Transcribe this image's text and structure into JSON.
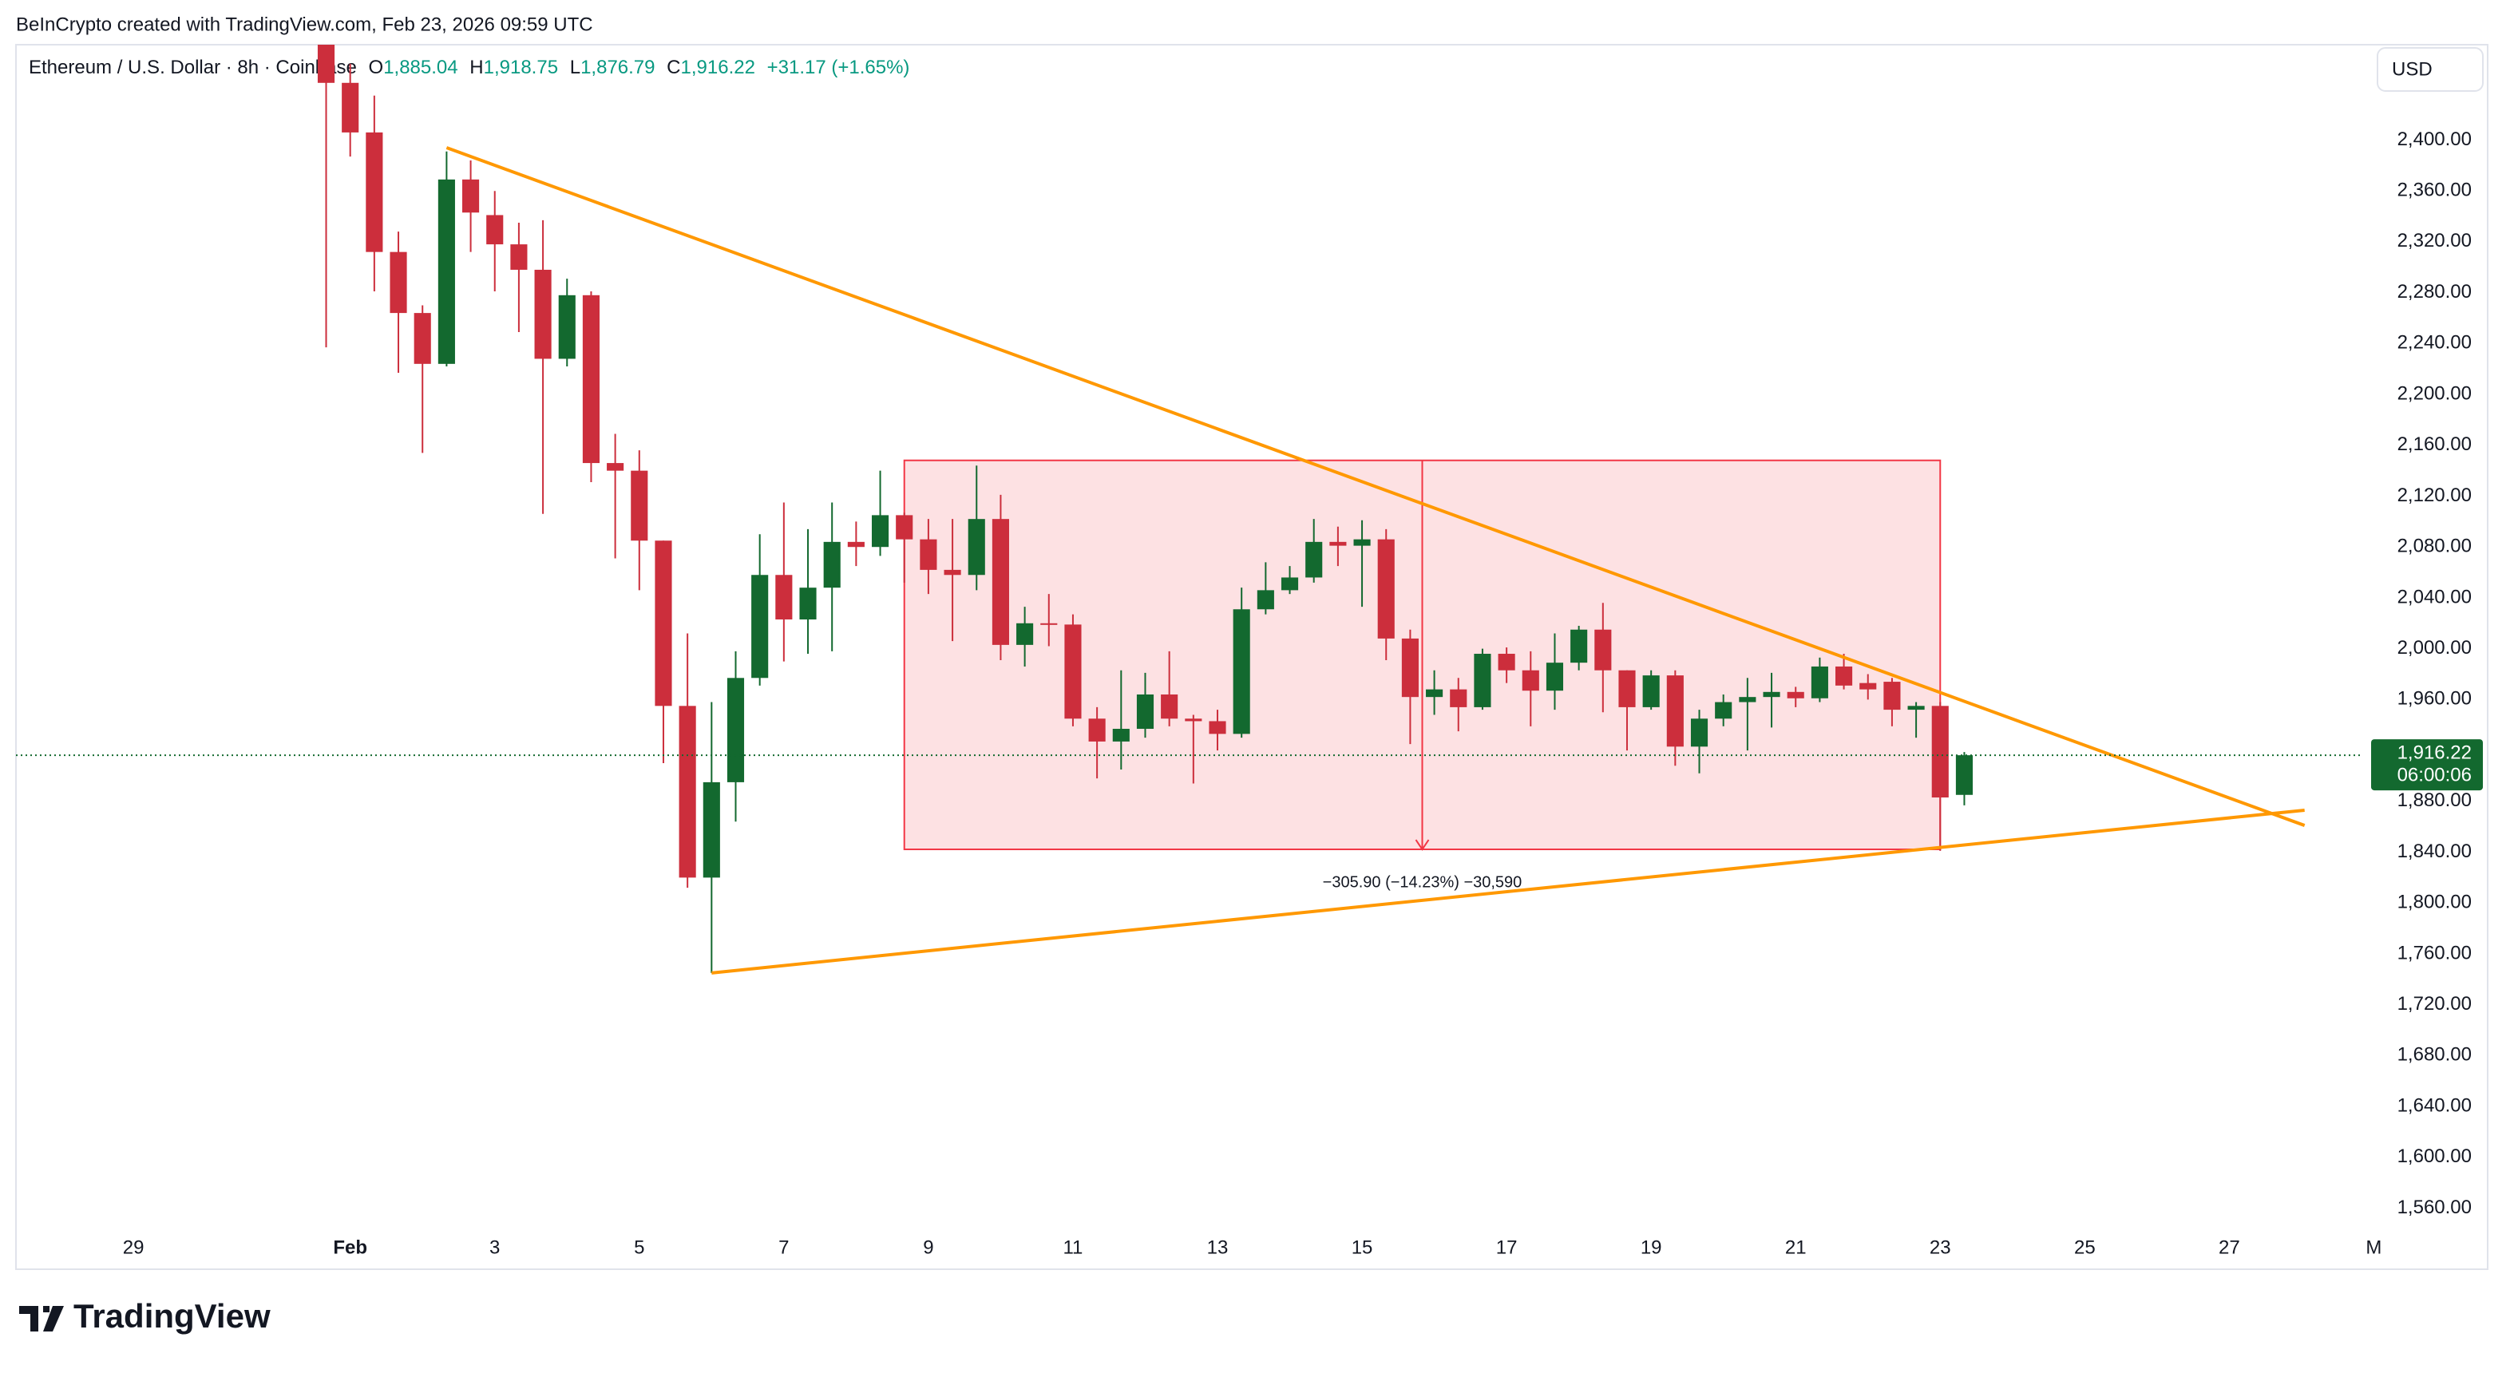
{
  "header": {
    "attribution": "BeInCrypto created with TradingView.com, Feb 23, 2026 09:59 UTC"
  },
  "legend": {
    "symbol": "Ethereum / U.S. Dollar · 8h · Coinbase",
    "open_label": "O",
    "open": "1,885.04",
    "high_label": "H",
    "high": "1,918.75",
    "low_label": "L",
    "low": "1,876.79",
    "close_label": "C",
    "close": "1,916.22",
    "change": "+31.17 (+1.65%)"
  },
  "currency": "USD",
  "footer": {
    "logo": "TradingView"
  },
  "chart_data": {
    "type": "candlestick",
    "up_color": "#13692f",
    "down_color": "#cc2e3c",
    "x": [
      64,
      72,
      80,
      88,
      96,
      104,
      112,
      120,
      128,
      136,
      144,
      152,
      160,
      168,
      176,
      184,
      192,
      200,
      208,
      216,
      224,
      232,
      240,
      248,
      256,
      264,
      272,
      280,
      288,
      296,
      304,
      312,
      320,
      328,
      336,
      344,
      352,
      360,
      368,
      376,
      384,
      392,
      400,
      408,
      416,
      424,
      432,
      440,
      448,
      456,
      464,
      472,
      480,
      488,
      496,
      504,
      512,
      520,
      528,
      536,
      544,
      552,
      560,
      568,
      576,
      584,
      592,
      600,
      608
    ],
    "open": [
      2480,
      2445,
      2406,
      2312,
      2264,
      2224,
      2369,
      2341,
      2318,
      2298,
      2228,
      2278,
      2146,
      2140,
      2085,
      1955,
      1820,
      1895,
      1977,
      2058,
      2023,
      2048,
      2084,
      2080,
      2105,
      2086,
      2062,
      2058,
      2102,
      2003,
      2020,
      2019,
      1945,
      1927,
      1937,
      1964,
      1945,
      1943,
      1933,
      2031,
      2046,
      2056,
      2084,
      2081,
      2086,
      2008,
      1962,
      1968,
      1954,
      1996,
      1983,
      1967,
      1989,
      2015,
      1983,
      1954,
      1979,
      1923,
      1945,
      1958,
      1962,
      1966,
      1961,
      1986,
      1973,
      1974,
      1952,
      1955,
      1885.04
    ],
    "high": [
      2490,
      2460,
      2435,
      2328,
      2270,
      2391,
      2384,
      2360,
      2335,
      2337,
      2291,
      2281,
      2169,
      2156,
      2085,
      2012,
      1958,
      1998,
      2090,
      2115,
      2094,
      2115,
      2100,
      2140,
      2107,
      2102,
      2102,
      2144,
      2121,
      2033,
      2043,
      2027,
      1954,
      1983,
      1981,
      1998,
      1948,
      1952,
      2048,
      2068,
      2065,
      2102,
      2096,
      2101,
      2094,
      2015,
      1983,
      1977,
      2000,
      2001,
      1998,
      2012,
      2018,
      2036,
      1983,
      1983,
      1983,
      1952,
      1964,
      1977,
      1981,
      1970,
      1993,
      1996,
      1980,
      1977,
      1958,
      1958,
      1918.75
    ],
    "low": [
      2237,
      2387,
      2281,
      2217,
      2154,
      2222,
      2312,
      2281,
      2249,
      2106,
      2222,
      2131,
      2071,
      2046,
      1910,
      1812,
      1745,
      1864,
      1971,
      1990,
      1996,
      1998,
      2065,
      2073,
      2052,
      2043,
      2006,
      2046,
      1991,
      1986,
      2002,
      1939,
      1898,
      1905,
      1930,
      1939,
      1894,
      1920,
      1930,
      2027,
      2043,
      2052,
      2065,
      2033,
      1991,
      1925,
      1948,
      1935,
      1952,
      1973,
      1939,
      1952,
      1983,
      1950,
      1920,
      1952,
      1908,
      1902,
      1939,
      1920,
      1938,
      1954,
      1958,
      1968,
      1960,
      1939,
      1930,
      1841,
      1876.79
    ],
    "close": [
      2445,
      2406,
      2312,
      2264,
      2224,
      2369,
      2343,
      2318,
      2298,
      2228,
      2278,
      2146,
      2140,
      2085,
      1955,
      1820,
      1895,
      1977,
      2058,
      2023,
      2048,
      2084,
      2080,
      2105,
      2086,
      2062,
      2058,
      2102,
      2003,
      2020,
      2019,
      1945,
      1927,
      1937,
      1964,
      1945,
      1943,
      1933,
      2031,
      2046,
      2056,
      2084,
      2081,
      2086,
      2008,
      1962,
      1968,
      1954,
      1996,
      1983,
      1967,
      1989,
      2015,
      1983,
      1954,
      1979,
      1923,
      1945,
      1958,
      1962,
      1966,
      1961,
      1986,
      1971,
      1968,
      1952,
      1955,
      1883,
      1916.22
    ],
    "xlim": [
      -39,
      738
    ],
    "ylim": [
      1512,
      2475
    ],
    "xticks": [
      {
        "value": 0,
        "label": "29"
      },
      {
        "value": 72,
        "label": "Feb"
      },
      {
        "value": 120,
        "label": "3"
      },
      {
        "value": 168,
        "label": "5"
      },
      {
        "value": 216,
        "label": "7"
      },
      {
        "value": 264,
        "label": "9"
      },
      {
        "value": 312,
        "label": "11"
      },
      {
        "value": 360,
        "label": "13"
      },
      {
        "value": 408,
        "label": "15"
      },
      {
        "value": 456,
        "label": "17"
      },
      {
        "value": 504,
        "label": "19"
      },
      {
        "value": 552,
        "label": "21"
      },
      {
        "value": 600,
        "label": "23"
      },
      {
        "value": 648,
        "label": "25"
      },
      {
        "value": 696,
        "label": "27"
      },
      {
        "value": 744,
        "label": "M"
      }
    ],
    "yticks": [
      {
        "value": 2400,
        "label": "2,400.00"
      },
      {
        "value": 2360,
        "label": "2,360.00"
      },
      {
        "value": 2320,
        "label": "2,320.00"
      },
      {
        "value": 2280,
        "label": "2,280.00"
      },
      {
        "value": 2240,
        "label": "2,240.00"
      },
      {
        "value": 2200,
        "label": "2,200.00"
      },
      {
        "value": 2160,
        "label": "2,160.00"
      },
      {
        "value": 2120,
        "label": "2,120.00"
      },
      {
        "value": 2080,
        "label": "2,080.00"
      },
      {
        "value": 2040,
        "label": "2,040.00"
      },
      {
        "value": 2000,
        "label": "2,000.00"
      },
      {
        "value": 1960,
        "label": "1,960.00"
      },
      {
        "value": 1920,
        "label": "1,920.00"
      },
      {
        "value": 1880,
        "label": "1,880.00"
      },
      {
        "value": 1840,
        "label": "1,840.00"
      },
      {
        "value": 1800,
        "label": "1,800.00"
      },
      {
        "value": 1760,
        "label": "1,760.00"
      },
      {
        "value": 1720,
        "label": "1,720.00"
      },
      {
        "value": 1680,
        "label": "1,680.00"
      },
      {
        "value": 1640,
        "label": "1,640.00"
      },
      {
        "value": 1600,
        "label": "1,600.00"
      },
      {
        "value": 1560,
        "label": "1,560.00"
      }
    ],
    "grid": false,
    "trendlines": [
      {
        "x": [
          104,
          721
        ],
        "y": [
          2394,
          1861
        ],
        "color": "#ff9800"
      },
      {
        "x": [
          192,
          721
        ],
        "y": [
          1745,
          1873
        ],
        "color": "#ff9800"
      }
    ],
    "range": {
      "x": [
        256,
        600
      ],
      "y": [
        2148.1,
        1842.2
      ],
      "label": "−305.90 (−14.23%) −30,590",
      "color": "#f23645"
    },
    "last_price": {
      "label": "1,916.22",
      "countdown": "06:00:06",
      "color": "#13692f"
    }
  }
}
